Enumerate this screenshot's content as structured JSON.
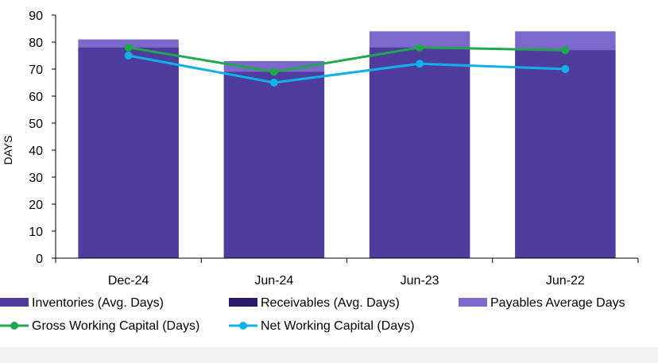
{
  "chart_data": {
    "type": "bar",
    "categories": [
      "Dec-24",
      "Jun-24",
      "Jun-23",
      "Jun-22"
    ],
    "ylabel": "DAYS",
    "xlabel": "",
    "ylim": [
      0,
      90
    ],
    "yticks": [
      0,
      10,
      20,
      30,
      40,
      50,
      60,
      70,
      80,
      90
    ],
    "grid": false,
    "legend_position": "bottom",
    "bar_series": [
      {
        "name": "Inventories (Avg. Days)",
        "values": [
          78,
          69,
          78,
          77
        ],
        "color": "#4f3d9d"
      },
      {
        "name": "Receivables (Avg. Days)",
        "values": [
          0,
          0,
          0,
          0
        ],
        "color": "#2b1a6b"
      },
      {
        "name": "Payables Average Days",
        "values": [
          81,
          73,
          84,
          84
        ],
        "color": "#7d69cc"
      }
    ],
    "line_series": [
      {
        "name": "Gross Working Capital (Days)",
        "values": [
          78,
          69,
          78,
          77
        ],
        "color": "#1fa84f"
      },
      {
        "name": "Net Working Capital (Days)",
        "values": [
          75,
          65,
          72,
          70
        ],
        "color": "#12b0e8"
      }
    ]
  }
}
